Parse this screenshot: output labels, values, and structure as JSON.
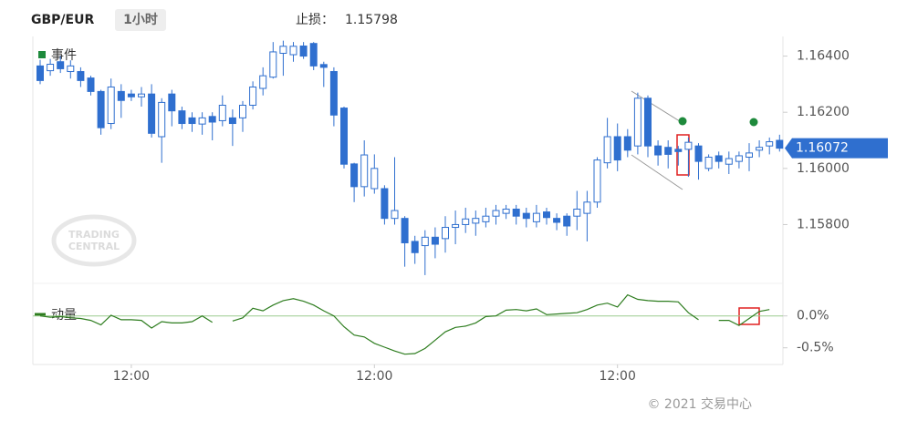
{
  "header": {
    "symbol": "GBP/EUR",
    "interval": "1小时",
    "stop_loss_label": "止损：",
    "stop_loss_value": "1.15798"
  },
  "watermark": {
    "line1": "TRADING",
    "line2": "CENTRAL"
  },
  "footer": {
    "copyright": "© 2021 交易中心"
  },
  "chart_data": [
    {
      "type": "candlestick",
      "events_label": "事件",
      "events_color": "#1e8a3c",
      "up_color": "#2f6fcf",
      "down_color": "#2f6fcf",
      "open": [
        1.16365,
        1.16348,
        1.1638,
        1.16345,
        1.16345,
        1.16322,
        1.16274,
        1.1616,
        1.16274,
        1.16265,
        1.16255,
        1.16265,
        1.16113,
        1.16265,
        1.16205,
        1.1618,
        1.16158,
        1.16185,
        1.1617,
        1.1618,
        1.1618,
        1.16225,
        1.16285,
        1.16325,
        1.1641,
        1.16405,
        1.16436,
        1.16445,
        1.1637,
        1.16345,
        1.16215,
        1.16016,
        1.15935,
        1.15928,
        1.15928,
        1.15822,
        1.15822,
        1.1574,
        1.15725,
        1.15755,
        1.1575,
        1.1579,
        1.158,
        1.15805,
        1.1581,
        1.1583,
        1.1584,
        1.15855,
        1.1584,
        1.1581,
        1.15845,
        1.15822,
        1.1583,
        1.1583,
        1.1584,
        1.1588,
        1.1602,
        1.16113,
        1.16113,
        1.1608,
        1.1625,
        1.1608,
        1.16075,
        1.16068,
        1.16068,
        1.1608,
        1.16,
        1.16045,
        1.16015,
        1.16025,
        1.1604,
        1.16065,
        1.1608,
        1.161
      ],
      "high": [
        1.16387,
        1.1639,
        1.164,
        1.16385,
        1.1636,
        1.1633,
        1.1628,
        1.1632,
        1.163,
        1.1628,
        1.1629,
        1.163,
        1.1625,
        1.1628,
        1.1622,
        1.162,
        1.162,
        1.162,
        1.1626,
        1.1621,
        1.1624,
        1.1631,
        1.1636,
        1.1645,
        1.16455,
        1.1645,
        1.1645,
        1.1645,
        1.1638,
        1.1636,
        1.1622,
        1.1602,
        1.161,
        1.1605,
        1.1594,
        1.1604,
        1.1583,
        1.1576,
        1.1578,
        1.1579,
        1.1583,
        1.1585,
        1.1586,
        1.1585,
        1.1586,
        1.1587,
        1.1587,
        1.1587,
        1.1586,
        1.1587,
        1.1586,
        1.1584,
        1.1584,
        1.1592,
        1.1592,
        1.1604,
        1.1618,
        1.1616,
        1.1614,
        1.1627,
        1.1626,
        1.161,
        1.161,
        1.1608,
        1.1611,
        1.1609,
        1.1605,
        1.1606,
        1.1606,
        1.1606,
        1.1609,
        1.161,
        1.1611,
        1.1612
      ],
      "low": [
        1.163,
        1.1633,
        1.1634,
        1.1632,
        1.1629,
        1.1626,
        1.1612,
        1.1614,
        1.1618,
        1.1624,
        1.1622,
        1.1611,
        1.1602,
        1.1615,
        1.1614,
        1.1613,
        1.1612,
        1.161,
        1.1615,
        1.1608,
        1.1613,
        1.1621,
        1.1626,
        1.1632,
        1.1633,
        1.1638,
        1.1639,
        1.1635,
        1.1629,
        1.1615,
        1.16,
        1.1588,
        1.159,
        1.1591,
        1.158,
        1.158,
        1.1565,
        1.1566,
        1.1562,
        1.1568,
        1.157,
        1.1573,
        1.1577,
        1.1576,
        1.1579,
        1.158,
        1.1582,
        1.158,
        1.1579,
        1.1579,
        1.158,
        1.1578,
        1.1576,
        1.1578,
        1.1574,
        1.1586,
        1.16,
        1.1599,
        1.1604,
        1.1605,
        1.1604,
        1.1601,
        1.16,
        1.1601,
        1.1597,
        1.1596,
        1.1599,
        1.16,
        1.1598,
        1.16,
        1.1599,
        1.1604,
        1.1605,
        1.1606
      ],
      "close": [
        1.16313,
        1.16371,
        1.16355,
        1.16365,
        1.16313,
        1.16274,
        1.16145,
        1.1629,
        1.16242,
        1.16255,
        1.16265,
        1.16125,
        1.16235,
        1.16205,
        1.1616,
        1.1616,
        1.1618,
        1.16165,
        1.16225,
        1.1616,
        1.16225,
        1.1629,
        1.1633,
        1.16415,
        1.16435,
        1.16435,
        1.164,
        1.16365,
        1.1636,
        1.1619,
        1.16015,
        1.15935,
        1.16048,
        1.16,
        1.15822,
        1.1585,
        1.15735,
        1.157,
        1.15755,
        1.1573,
        1.1579,
        1.158,
        1.1582,
        1.15822,
        1.1583,
        1.1585,
        1.15855,
        1.1583,
        1.15822,
        1.1584,
        1.15825,
        1.15808,
        1.15795,
        1.15855,
        1.1588,
        1.1603,
        1.16113,
        1.1603,
        1.16065,
        1.1625,
        1.1608,
        1.16048,
        1.1605,
        1.1606,
        1.16093,
        1.16025,
        1.1604,
        1.16025,
        1.16035,
        1.16045,
        1.16055,
        1.16075,
        1.16095,
        1.16072
      ],
      "current_price": {
        "value": 1.16072,
        "label": "1.16072"
      },
      "current_price_color": "#2f6fcf",
      "ylim": [
        1.1561,
        1.1647
      ],
      "yticks": [
        {
          "value": 1.158,
          "label": "1.15800"
        },
        {
          "value": 1.16,
          "label": "1.16000"
        },
        {
          "value": 1.162,
          "label": "1.16200"
        },
        {
          "value": 1.164,
          "label": "1.16400"
        }
      ],
      "grid": false
    },
    {
      "type": "line",
      "categories": [
        null,
        null,
        null,
        null,
        null,
        null,
        null,
        null,
        null,
        "12:00",
        null,
        null,
        null,
        null,
        null,
        null,
        null,
        null,
        null,
        null,
        null,
        null,
        null,
        null,
        null,
        null,
        null,
        null,
        null,
        null,
        null,
        null,
        null,
        "12:00",
        null,
        null,
        null,
        null,
        null,
        null,
        null,
        null,
        null,
        null,
        null,
        null,
        null,
        null,
        null,
        null,
        null,
        null,
        null,
        null,
        null,
        null,
        null,
        "12:00",
        null,
        null,
        null,
        null,
        null,
        null,
        null,
        null,
        null,
        null,
        null,
        null,
        null,
        null,
        null,
        null
      ],
      "series": [
        {
          "name": "动量",
          "color": "#2e7d1f",
          "values": [
            0,
            -0.02,
            -0.01,
            -0.03,
            -0.04,
            -0.07,
            -0.14,
            0.01,
            -0.06,
            -0.06,
            -0.07,
            -0.19,
            -0.09,
            -0.11,
            -0.11,
            -0.09,
            0.0,
            -0.1,
            null,
            -0.08,
            -0.03,
            0.12,
            0.08,
            0.17,
            0.24,
            0.27,
            0.23,
            0.17,
            0.08,
            0.0,
            -0.17,
            -0.3,
            -0.33,
            -0.43,
            -0.49,
            -0.55,
            -0.6,
            -0.59,
            -0.51,
            -0.38,
            -0.25,
            -0.18,
            -0.16,
            -0.11,
            -0.01,
            0.0,
            0.09,
            0.1,
            0.08,
            0.11,
            0.02,
            0.03,
            0.04,
            0.05,
            0.1,
            0.17,
            0.2,
            0.14,
            0.33,
            0.26,
            0.24,
            0.23,
            0.23,
            0.22,
            0.05,
            -0.06,
            null,
            -0.07,
            -0.07,
            -0.15,
            -0.04,
            0.07,
            0.1,
            null
          ]
        }
      ],
      "ylim": [
        -0.69,
        0.41
      ],
      "yticks": [
        {
          "value": -0.5,
          "label": "-0.5%"
        },
        {
          "value": 0,
          "label": "0.0%"
        }
      ],
      "zero_line_color": "#9ccc8f",
      "grid": false
    }
  ]
}
